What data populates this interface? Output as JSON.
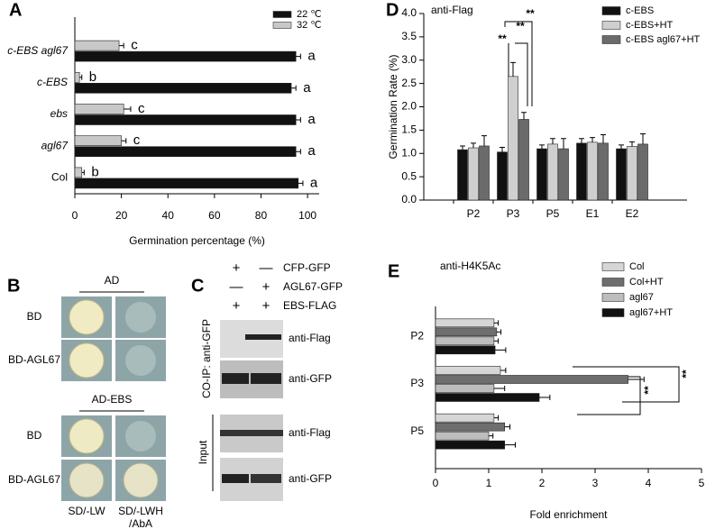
{
  "chart_data": [
    {
      "type": "hbar",
      "panel": "A",
      "xlabel": "Germination percentage (%)",
      "categories": [
        "c-EBS agl67",
        "c-EBS",
        "ebs",
        "agl67",
        "Col"
      ],
      "series": [
        {
          "name": "22 ℃",
          "color": "#111111",
          "values": [
            95,
            93,
            95,
            95,
            96
          ],
          "errors": [
            2,
            2,
            2,
            2,
            2
          ],
          "letters": [
            "a",
            "a",
            "a",
            "a",
            "a"
          ]
        },
        {
          "name": "32 ℃",
          "color": "#c8c8c8",
          "values": [
            19,
            2,
            21,
            20,
            3
          ],
          "errors": [
            2,
            1,
            3,
            2,
            1
          ],
          "letters": [
            "c",
            "b",
            "c",
            "c",
            "b"
          ]
        }
      ],
      "xlim": [
        0,
        105
      ],
      "xticks": [
        0,
        20,
        40,
        60,
        80,
        100
      ]
    },
    {
      "type": "bar",
      "panel": "D",
      "annotation": "anti-Flag",
      "ylabel": "Germination Rate (%)",
      "categories": [
        "P2",
        "P3",
        "P5",
        "E1",
        "E2"
      ],
      "series": [
        {
          "name": "c-EBS",
          "color": "#111111",
          "values": [
            1.08,
            1.03,
            1.1,
            1.22,
            1.1
          ],
          "errors": [
            0.08,
            0.1,
            0.08,
            0.1,
            0.08
          ]
        },
        {
          "name": "c-EBS+HT",
          "color": "#cfcfcf",
          "values": [
            1.12,
            2.65,
            1.2,
            1.24,
            1.15
          ],
          "errors": [
            0.1,
            0.3,
            0.12,
            0.1,
            0.1
          ]
        },
        {
          "name": "c-EBS agl67+HT",
          "color": "#6b6b6b",
          "values": [
            1.16,
            1.73,
            1.1,
            1.22,
            1.2
          ],
          "errors": [
            0.22,
            0.15,
            0.22,
            0.18,
            0.22
          ]
        }
      ],
      "significance": [
        "**",
        "**",
        "**"
      ],
      "ylim": [
        0,
        4
      ],
      "yticks": [
        {
          "value": 0,
          "label": "0.0"
        },
        0.5,
        {
          "value": 1,
          "label": "1.0"
        },
        1.5,
        {
          "value": 2,
          "label": "2.0"
        },
        2.5,
        {
          "value": 3,
          "label": "3.0"
        },
        3.5,
        {
          "value": 4,
          "label": "4.0"
        }
      ]
    },
    {
      "type": "hbar",
      "panel": "E",
      "annotation": "anti-H4K5Ac",
      "xlabel": "Fold enrichment",
      "categories": [
        "P2",
        "P3",
        "P5"
      ],
      "series": [
        {
          "name": "Col",
          "color": "#d6d6d6",
          "values": [
            1.1,
            1.22,
            1.1
          ],
          "errors": [
            0.08,
            0.1,
            0.08
          ]
        },
        {
          "name": "Col+HT",
          "color": "#6e6e6e",
          "values": [
            1.15,
            3.62,
            1.3
          ],
          "errors": [
            0.08,
            0.3,
            0.1
          ]
        },
        {
          "name": "agl67",
          "color": "#bdbdbd",
          "values": [
            1.1,
            1.1,
            1.0
          ],
          "errors": [
            0.08,
            0.2,
            0.08
          ]
        },
        {
          "name": "agl67+HT",
          "color": "#111111",
          "values": [
            1.12,
            1.95,
            1.3
          ],
          "errors": [
            0.2,
            0.2,
            0.2
          ]
        }
      ],
      "significance": [
        "**",
        "**"
      ],
      "xlim": [
        0,
        5
      ],
      "xticks": [
        0,
        1,
        2,
        3,
        4,
        5
      ]
    }
  ],
  "panel_b": {
    "letter": "B",
    "top_header": "AD",
    "bottom_header": "AD-EBS",
    "rows": [
      "BD",
      "BD-AGL67",
      "BD",
      "BD-AGL67"
    ],
    "columns": [
      "SD/-LW",
      "SD/-LWH",
      "/AbA"
    ]
  },
  "panel_c": {
    "letter": "C",
    "conditions": [
      {
        "signs": [
          "+",
          "—"
        ],
        "label": "CFP-GFP"
      },
      {
        "signs": [
          "—",
          "+"
        ],
        "label": "AGL67-GFP"
      },
      {
        "signs": [
          "+",
          "+"
        ],
        "label": "EBS-FLAG"
      }
    ],
    "coip": "CO-IP: anti-GFP",
    "input": "Input",
    "blots": [
      "anti-Flag",
      "anti-GFP",
      "anti-Flag",
      "anti-GFP"
    ]
  }
}
